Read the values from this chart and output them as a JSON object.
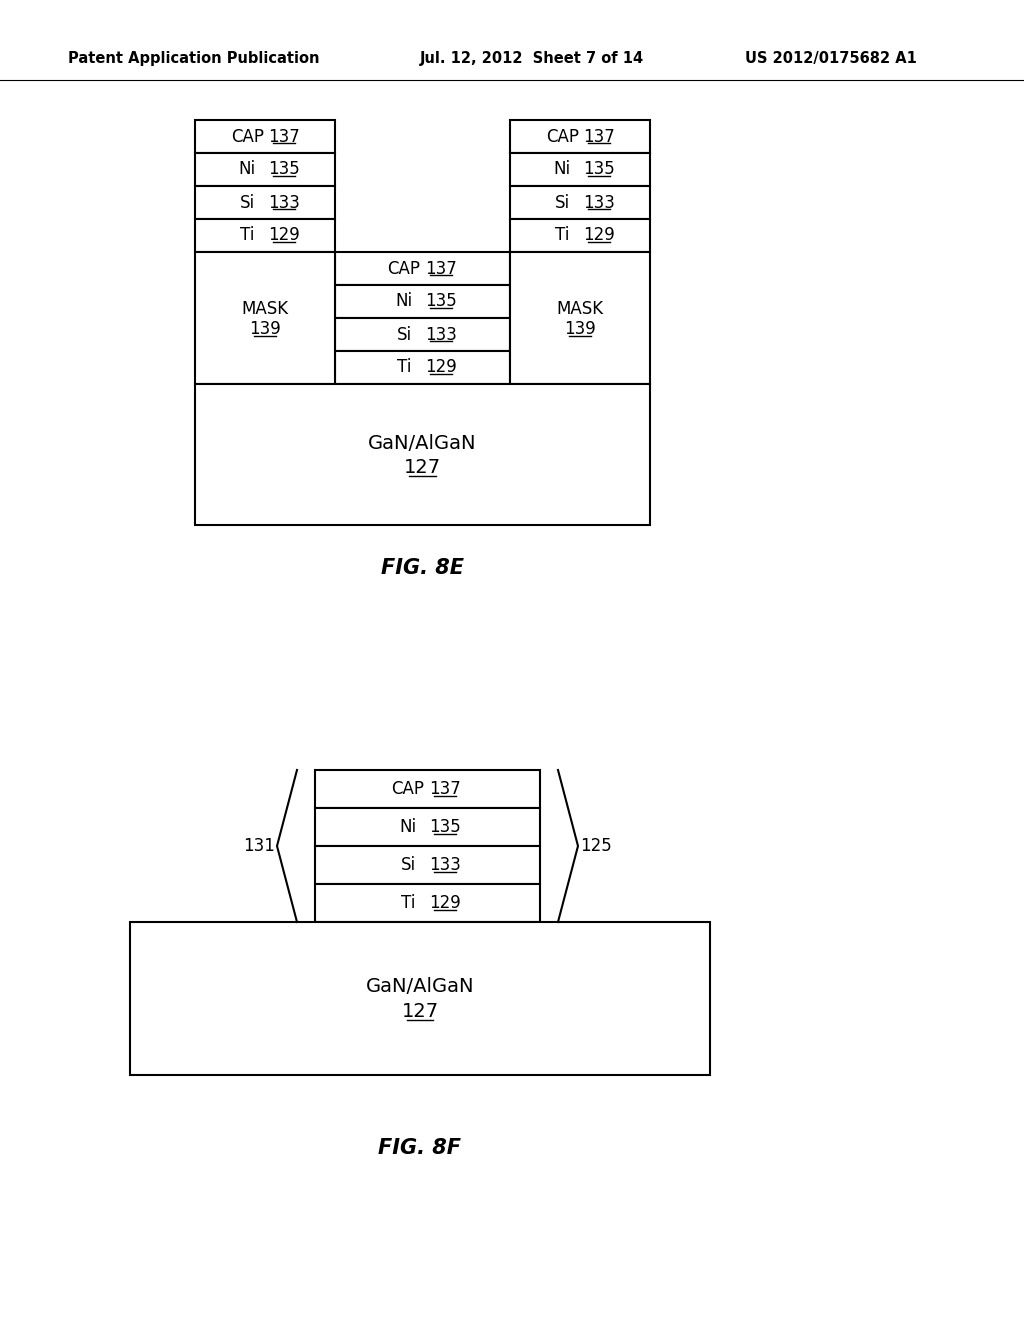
{
  "bg_color": "#ffffff",
  "header_text": "Patent Application Publication",
  "header_date": "Jul. 12, 2012  Sheet 7 of 14",
  "header_patent": "US 2012/0175682 A1",
  "fig8e_label": "FIG. 8E",
  "fig8f_label": "FIG. 8F",
  "layers_top": [
    {
      "label": "CAP",
      "ref": "137"
    },
    {
      "label": "Ni",
      "ref": "135"
    },
    {
      "label": "Si",
      "ref": "133"
    },
    {
      "label": "Ti",
      "ref": "129"
    }
  ],
  "layers_center": [
    {
      "label": "CAP",
      "ref": "137"
    },
    {
      "label": "Ni",
      "ref": "135"
    },
    {
      "label": "Si",
      "ref": "133"
    },
    {
      "label": "Ti",
      "ref": "129"
    }
  ],
  "mask_label": "MASK",
  "mask_ref": "139",
  "gan_label": "GaN/AlGaN",
  "gan_ref": "127",
  "fig8f_layers": [
    {
      "label": "CAP",
      "ref": "137"
    },
    {
      "label": "Ni",
      "ref": "135"
    },
    {
      "label": "Si",
      "ref": "133"
    },
    {
      "label": "Ti",
      "ref": "129"
    }
  ],
  "fig8f_gan_label": "GaN/AlGaN",
  "fig8f_gan_ref": "127",
  "fig8f_ref_left": "131",
  "fig8f_ref_right": "125"
}
